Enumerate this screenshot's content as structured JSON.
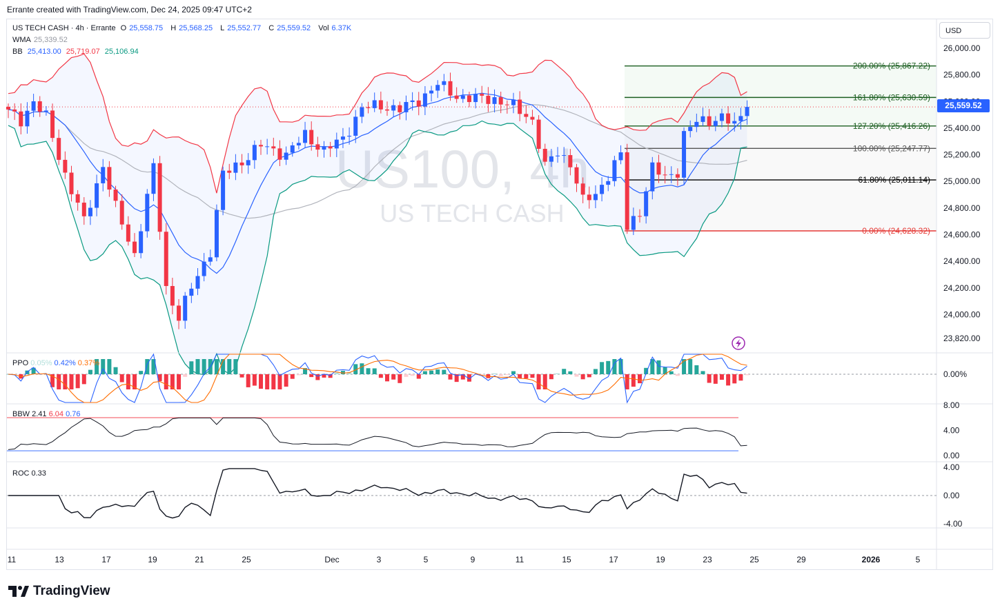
{
  "header": "Errante created with TradingView.com, Dec 24, 2025 09:47 UTC+2",
  "legend": {
    "symbol": "US TECH CASH · 4h · Errante",
    "o_label": "O",
    "o": "25,558.75",
    "h_label": "H",
    "h": "25,568.25",
    "l_label": "L",
    "l": "25,552.77",
    "c_label": "C",
    "c": "25,559.52",
    "vol_label": "Vol",
    "vol": "6.37K",
    "wma_label": "WMA",
    "wma": "25,339.52",
    "bb_label": "BB",
    "bb_basis": "25,413.00",
    "bb_upper": "25,719.07",
    "bb_lower": "25,106.94"
  },
  "currency": "USD",
  "last_price": "25,559.52",
  "watermark": {
    "title": "US100, 4h",
    "subtitle": "US TECH CASH"
  },
  "fib_labels": [
    {
      "text": "200.00% (25,867.22)",
      "price": 25867.22,
      "color": "#1b5e20"
    },
    {
      "text": "161.80% (25,630.59)",
      "price": 25630.59,
      "color": "#1b5e20"
    },
    {
      "text": "127.20% (25,416.26)",
      "price": 25416.26,
      "color": "#1b5e20"
    },
    {
      "text": "100.00% (25,247.77)",
      "price": 25247.77,
      "color": "#555555"
    },
    {
      "text": "61.80% (25,011.14)",
      "price": 25011.14,
      "color": "#000000"
    },
    {
      "text": "0.00% (24,628.32)",
      "price": 24628.32,
      "color": "#e53935"
    }
  ],
  "price_axis": [
    "26,000.00",
    "25,800.00",
    "25,600.00",
    "25,400.00",
    "25,200.00",
    "25,000.00",
    "24,800.00",
    "24,600.00",
    "24,400.00",
    "24,200.00",
    "24,000.00",
    "23,820.00"
  ],
  "time_axis": [
    "11",
    "13",
    "17",
    "19",
    "21",
    "25",
    "Dec",
    "3",
    "5",
    "9",
    "11",
    "15",
    "17",
    "19",
    "23",
    "25",
    "29",
    "2026",
    "5"
  ],
  "ppo": {
    "label": "PPO",
    "v1": "0.05%",
    "v2": "0.42%",
    "v3": "0.37%",
    "axis": [
      "0.00%"
    ]
  },
  "bbw": {
    "label": "BBW",
    "v1": "2.41",
    "v2": "6.04",
    "v3": "0.76",
    "axis": [
      "8.00",
      "4.00",
      "0.00"
    ]
  },
  "roc": {
    "label": "ROC",
    "v1": "0.33",
    "axis": [
      "4.00",
      "0.00",
      "-4.00"
    ]
  },
  "brand": "TradingView",
  "colors": {
    "up": "#2962ff",
    "down": "#f23645",
    "bb_upper": "#f23645",
    "bb_lower": "#089981",
    "basis": "#2962ff",
    "wma": "#b0b3bb"
  },
  "chart_data": {
    "type": "candlestick",
    "title": "US100, 4h",
    "ylim": [
      23820,
      26100
    ],
    "close_anchors": [
      [
        0,
        25520
      ],
      [
        2,
        25460
      ],
      [
        4,
        25600
      ],
      [
        6,
        25480
      ],
      [
        9,
        25050
      ],
      [
        12,
        24700
      ],
      [
        15,
        25120
      ],
      [
        17,
        24800
      ],
      [
        20,
        24450
      ],
      [
        23,
        25100
      ],
      [
        25,
        24200
      ],
      [
        27,
        23980
      ],
      [
        29,
        24200
      ],
      [
        32,
        24480
      ],
      [
        34,
        25050
      ],
      [
        37,
        25150
      ],
      [
        40,
        25270
      ],
      [
        44,
        25200
      ],
      [
        47,
        25350
      ],
      [
        50,
        25230
      ],
      [
        53,
        25320
      ],
      [
        56,
        25550
      ],
      [
        59,
        25570
      ],
      [
        62,
        25540
      ],
      [
        65,
        25610
      ],
      [
        68,
        25730
      ],
      [
        71,
        25640
      ],
      [
        74,
        25620
      ],
      [
        77,
        25620
      ],
      [
        80,
        25560
      ],
      [
        83,
        25460
      ],
      [
        85,
        25110
      ],
      [
        87,
        25220
      ],
      [
        89,
        25140
      ],
      [
        91,
        24850
      ],
      [
        93,
        24900
      ],
      [
        95,
        25050
      ],
      [
        97,
        25200
      ],
      [
        98,
        24650
      ],
      [
        100,
        24780
      ],
      [
        102,
        25100
      ],
      [
        104,
        25030
      ],
      [
        106,
        25080
      ],
      [
        107,
        25350
      ],
      [
        109,
        25450
      ],
      [
        111,
        25460
      ],
      [
        113,
        25480
      ],
      [
        115,
        25420
      ],
      [
        117,
        25559.52
      ]
    ],
    "ppo_hist": "signed bars, positive late-Dec",
    "bbw": {
      "bands_high": 6.04,
      "bands_low": 0.76,
      "last": 2.41
    },
    "roc_last": 0.33
  }
}
